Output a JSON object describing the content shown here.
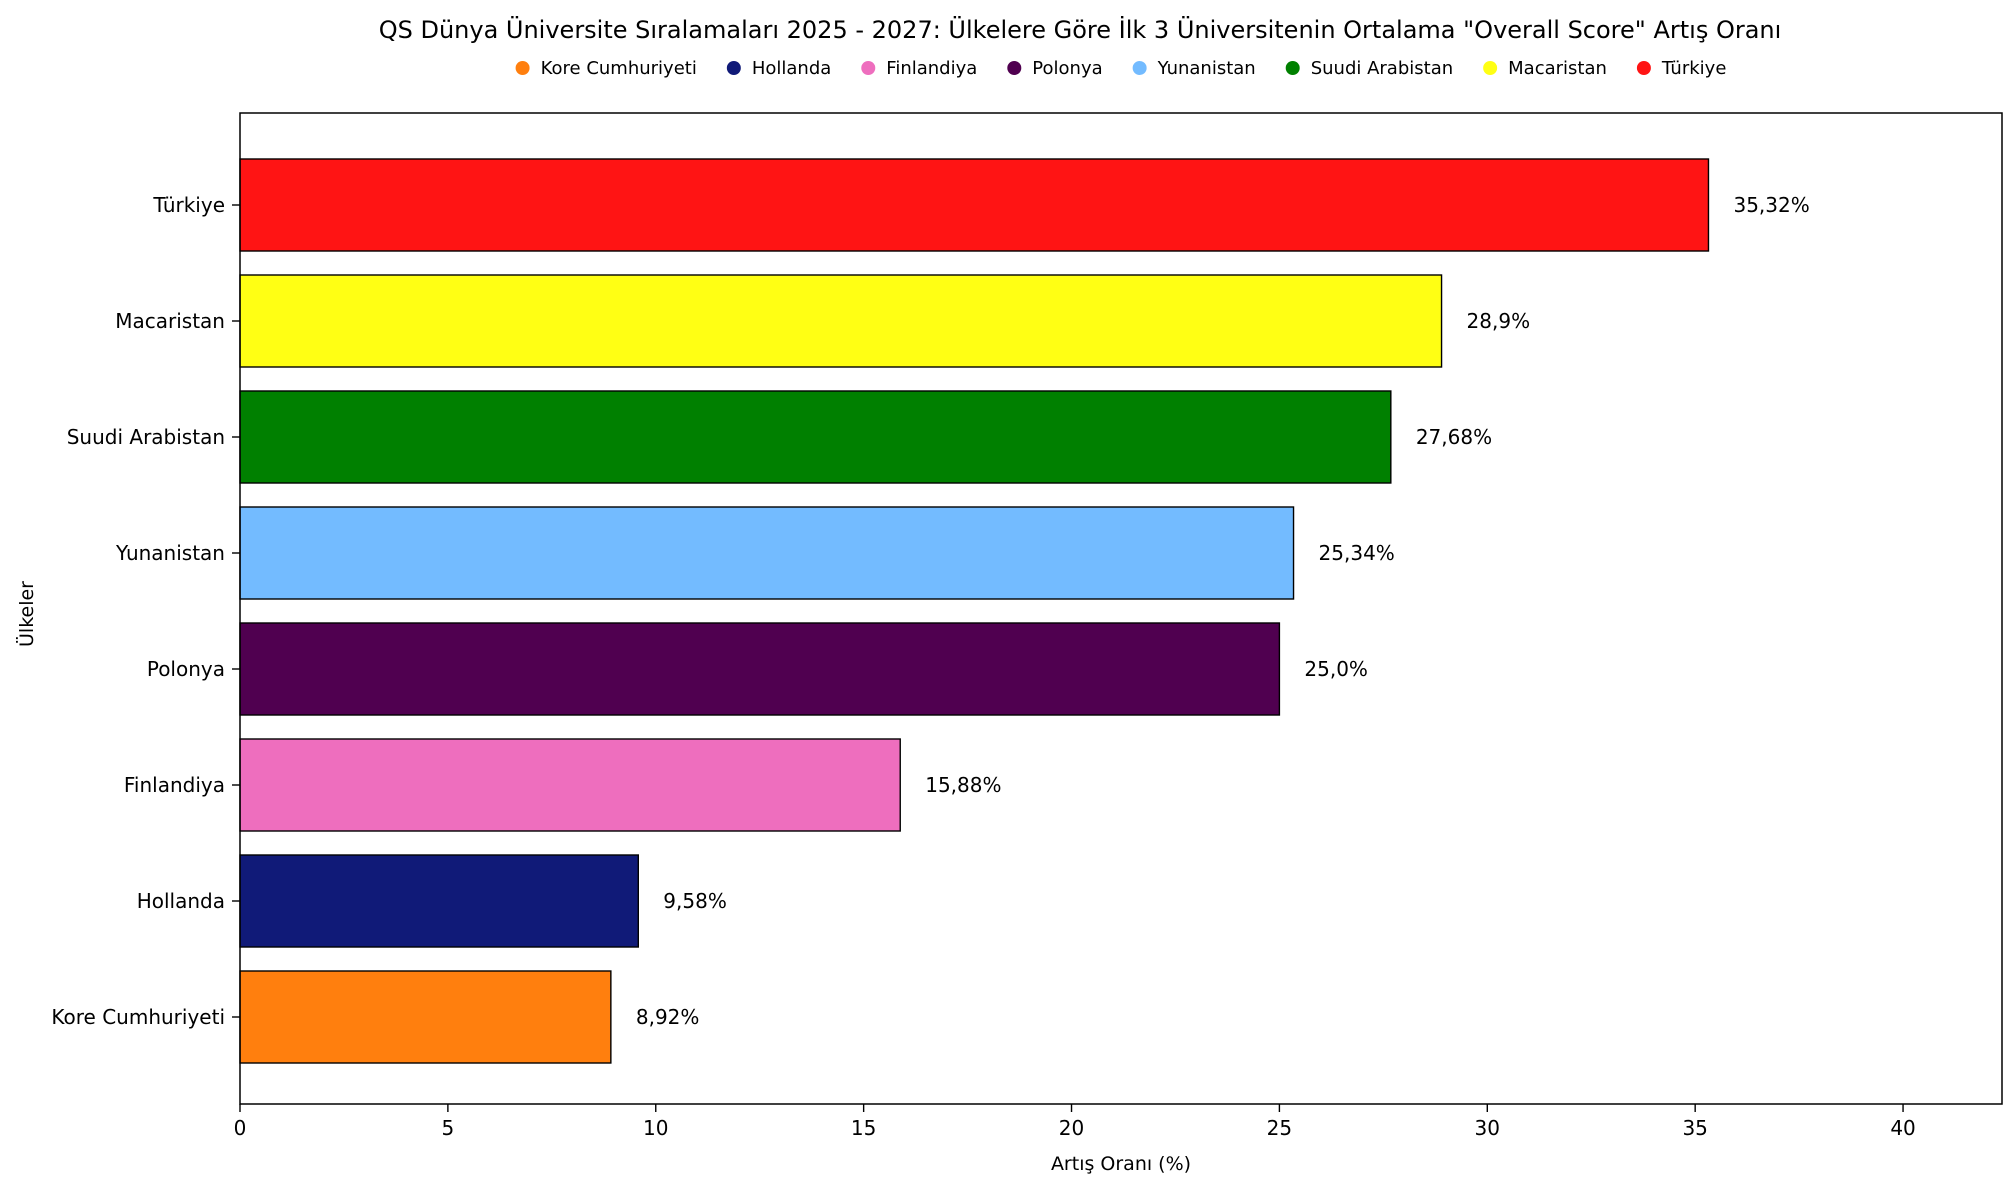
{
  "chart_data": {
    "type": "bar",
    "orientation": "horizontal",
    "title": "QS Dünya Üniversite Sıralamaları 2025 - 2027: Ülkelere Göre İlk 3 Üniversitenin Ortalama \"Overall Score\" Artış Oranı",
    "xlabel": "Artış Oranı (%)",
    "ylabel": "Ülkeler",
    "xlim": [
      0,
      42.38
    ],
    "xticks": [
      "0",
      "5",
      "10",
      "15",
      "20",
      "25",
      "30",
      "35",
      "40"
    ],
    "xtick_values": [
      0,
      5,
      10,
      15,
      20,
      25,
      30,
      35,
      40
    ],
    "grid": false,
    "legend_position": "top-center",
    "categories": [
      "Kore Cumhuriyeti",
      "Hollanda",
      "Finlandiya",
      "Polonya",
      "Yunanistan",
      "Suudi Arabistan",
      "Macaristan",
      "Türkiye"
    ],
    "values": [
      8.92,
      9.58,
      15.88,
      25.0,
      25.34,
      27.68,
      28.9,
      35.32
    ],
    "value_labels": [
      "8,92%",
      "9,58%",
      "15,88%",
      "25,0%",
      "25,34%",
      "27,68%",
      "28,9%",
      "35,32%"
    ],
    "colors": [
      "#ff7f0e",
      "#101a78",
      "#ee6ebe",
      "#500050",
      "#73bbff",
      "#008000",
      "#ffff14",
      "#ff1414"
    ],
    "legend": [
      {
        "label": "Kore Cumhuriyeti",
        "color": "#ff7f0e"
      },
      {
        "label": "Hollanda",
        "color": "#101a78"
      },
      {
        "label": "Finlandiya",
        "color": "#ee6ebe"
      },
      {
        "label": "Polonya",
        "color": "#500050"
      },
      {
        "label": "Yunanistan",
        "color": "#73bbff"
      },
      {
        "label": "Suudi Arabistan",
        "color": "#008000"
      },
      {
        "label": "Macaristan",
        "color": "#ffff14"
      },
      {
        "label": "Türkiye",
        "color": "#ff1414"
      }
    ]
  }
}
